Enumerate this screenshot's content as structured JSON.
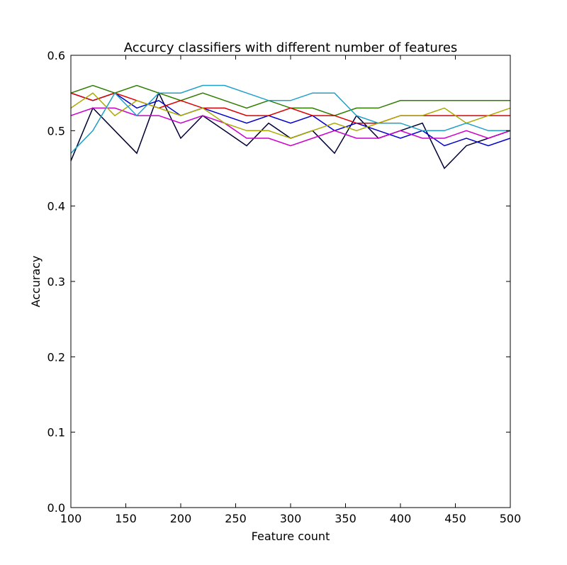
{
  "chart_data": {
    "type": "line",
    "title": "Accurcy classifiers with different number of features",
    "xlabel": "Feature count",
    "ylabel": "Accuracy",
    "xlim": [
      100,
      500
    ],
    "ylim": [
      0.0,
      0.6
    ],
    "xticks": [
      100,
      150,
      200,
      250,
      300,
      350,
      400,
      450,
      500
    ],
    "yticks": [
      0.0,
      0.1,
      0.2,
      0.3,
      0.4,
      0.5,
      0.6
    ],
    "xtick_labels": [
      "100",
      "150",
      "200",
      "250",
      "300",
      "350",
      "400",
      "450",
      "500"
    ],
    "ytick_labels": [
      "0.0",
      "0.1",
      "0.2",
      "0.3",
      "0.4",
      "0.5",
      "0.6"
    ],
    "grid": false,
    "legend": "none",
    "x": [
      100,
      120,
      140,
      160,
      180,
      200,
      220,
      240,
      260,
      280,
      300,
      320,
      340,
      360,
      380,
      400,
      420,
      440,
      460,
      480,
      500
    ],
    "series": [
      {
        "color": "#000033",
        "values": [
          0.46,
          0.53,
          0.5,
          0.47,
          0.55,
          0.49,
          0.52,
          0.5,
          0.48,
          0.51,
          0.49,
          0.5,
          0.47,
          0.52,
          0.49,
          0.5,
          0.51,
          0.45,
          0.48,
          0.49,
          0.5
        ]
      },
      {
        "color": "#0000cc",
        "values": [
          0.55,
          0.54,
          0.55,
          0.53,
          0.54,
          0.52,
          0.53,
          0.52,
          0.51,
          0.52,
          0.51,
          0.52,
          0.5,
          0.51,
          0.5,
          0.49,
          0.5,
          0.48,
          0.49,
          0.48,
          0.49
        ]
      },
      {
        "color": "#2e7d00",
        "values": [
          0.55,
          0.56,
          0.55,
          0.56,
          0.55,
          0.54,
          0.55,
          0.54,
          0.53,
          0.54,
          0.53,
          0.53,
          0.52,
          0.53,
          0.53,
          0.54,
          0.54,
          0.54,
          0.54,
          0.54,
          0.54
        ]
      },
      {
        "color": "#dd0000",
        "values": [
          0.55,
          0.54,
          0.55,
          0.54,
          0.53,
          0.54,
          0.53,
          0.53,
          0.52,
          0.52,
          0.53,
          0.52,
          0.52,
          0.51,
          0.51,
          0.52,
          0.52,
          0.52,
          0.52,
          0.52,
          0.52
        ]
      },
      {
        "color": "#cc00cc",
        "values": [
          0.52,
          0.53,
          0.53,
          0.52,
          0.52,
          0.51,
          0.52,
          0.51,
          0.49,
          0.49,
          0.48,
          0.49,
          0.5,
          0.49,
          0.49,
          0.5,
          0.49,
          0.49,
          0.5,
          0.49,
          0.5
        ]
      },
      {
        "color": "#aaaa00",
        "values": [
          0.53,
          0.55,
          0.52,
          0.54,
          0.53,
          0.52,
          0.53,
          0.51,
          0.5,
          0.5,
          0.49,
          0.5,
          0.51,
          0.5,
          0.51,
          0.52,
          0.52,
          0.53,
          0.51,
          0.52,
          0.53
        ]
      },
      {
        "color": "#1fa0c8",
        "values": [
          0.47,
          0.5,
          0.55,
          0.52,
          0.55,
          0.55,
          0.56,
          0.56,
          0.55,
          0.54,
          0.54,
          0.55,
          0.55,
          0.52,
          0.51,
          0.51,
          0.5,
          0.5,
          0.51,
          0.5,
          0.5
        ]
      }
    ]
  }
}
